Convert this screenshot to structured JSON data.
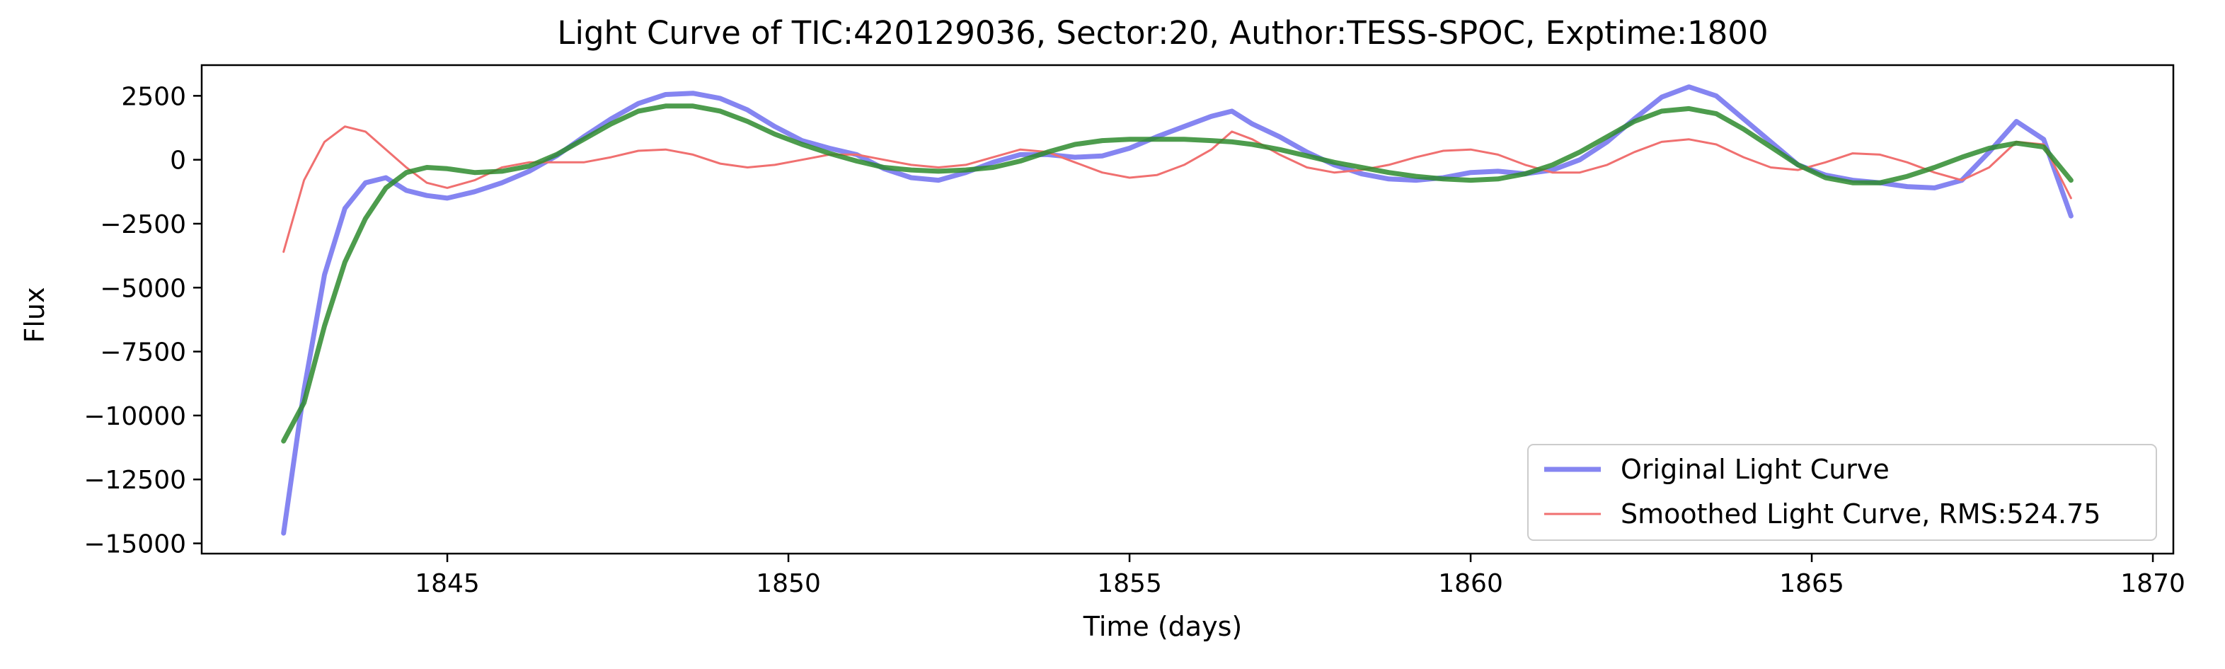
{
  "chart_data": {
    "type": "line",
    "title": "Light Curve of TIC:420129036, Sector:20, Author:TESS-SPOC, Exptime:1800",
    "xlabel": "Time (days)",
    "ylabel": "Flux",
    "xlim": [
      1841.4,
      1870.3
    ],
    "ylim": [
      -15400,
      3700
    ],
    "x_ticks": [
      1845,
      1850,
      1855,
      1860,
      1865,
      1870
    ],
    "y_ticks": [
      2500,
      0,
      -2500,
      -5000,
      -7500,
      -10000,
      -12500,
      -15000
    ],
    "x_tick_labels": [
      "1845",
      "1850",
      "1855",
      "1860",
      "1865",
      "1870"
    ],
    "y_tick_labels": [
      "2500",
      "0",
      "−2500",
      "−5000",
      "−7500",
      "−10000",
      "−12500",
      "−15000"
    ],
    "grid": false,
    "legend_position": "lower-right",
    "series": [
      {
        "name": "Original Light Curve",
        "color": "#7878f0",
        "x": [
          1842.6,
          1842.9,
          1843.2,
          1843.5,
          1843.8,
          1844.1,
          1844.4,
          1844.7,
          1845.0,
          1845.4,
          1845.8,
          1846.2,
          1846.6,
          1847.0,
          1847.4,
          1847.8,
          1848.2,
          1848.6,
          1849.0,
          1849.4,
          1849.8,
          1850.2,
          1850.6,
          1851.0,
          1851.4,
          1851.8,
          1852.2,
          1852.6,
          1853.0,
          1853.4,
          1853.8,
          1854.2,
          1854.6,
          1855.0,
          1855.4,
          1855.8,
          1856.2,
          1856.5,
          1856.8,
          1857.2,
          1857.6,
          1858.0,
          1858.4,
          1858.8,
          1859.2,
          1859.6,
          1860.0,
          1860.4,
          1860.8,
          1861.2,
          1861.6,
          1862.0,
          1862.4,
          1862.8,
          1863.2,
          1863.6,
          1864.0,
          1864.4,
          1864.8,
          1865.2,
          1865.6,
          1866.0,
          1866.4,
          1866.8,
          1867.2,
          1867.6,
          1868.0,
          1868.4,
          1868.8
        ],
        "y": [
          -14600,
          -9000,
          -4500,
          -1900,
          -900,
          -700,
          -1200,
          -1400,
          -1500,
          -1250,
          -900,
          -450,
          150,
          900,
          1600,
          2200,
          2550,
          2600,
          2400,
          1950,
          1300,
          750,
          450,
          200,
          -350,
          -700,
          -800,
          -500,
          -100,
          200,
          200,
          100,
          150,
          450,
          900,
          1300,
          1700,
          1900,
          1400,
          900,
          300,
          -200,
          -550,
          -750,
          -800,
          -700,
          -500,
          -450,
          -550,
          -400,
          0,
          700,
          1600,
          2450,
          2850,
          2500,
          1600,
          700,
          -200,
          -600,
          -800,
          -900,
          -1050,
          -1100,
          -800,
          300,
          1500,
          800,
          -2200
        ]
      },
      {
        "name": "Smoothed Light Curve, RMS:524.75",
        "color": "#f07070",
        "x": [
          1842.6,
          1842.9,
          1843.2,
          1843.5,
          1843.8,
          1844.1,
          1844.4,
          1844.7,
          1845.0,
          1845.4,
          1845.8,
          1846.2,
          1846.6,
          1847.0,
          1847.4,
          1847.8,
          1848.2,
          1848.6,
          1849.0,
          1849.4,
          1849.8,
          1850.2,
          1850.6,
          1851.0,
          1851.4,
          1851.8,
          1852.2,
          1852.6,
          1853.0,
          1853.4,
          1853.8,
          1854.2,
          1854.6,
          1855.0,
          1855.4,
          1855.8,
          1856.2,
          1856.5,
          1856.8,
          1857.2,
          1857.6,
          1858.0,
          1858.4,
          1858.8,
          1859.2,
          1859.6,
          1860.0,
          1860.4,
          1860.8,
          1861.2,
          1861.6,
          1862.0,
          1862.4,
          1862.8,
          1863.2,
          1863.6,
          1864.0,
          1864.4,
          1864.8,
          1865.2,
          1865.6,
          1866.0,
          1866.4,
          1866.8,
          1867.2,
          1867.6,
          1868.0,
          1868.4,
          1868.8
        ],
        "y": [
          -3600,
          -800,
          700,
          1300,
          1100,
          400,
          -300,
          -900,
          -1100,
          -800,
          -300,
          -100,
          -100,
          -100,
          100,
          350,
          400,
          200,
          -150,
          -300,
          -200,
          0,
          200,
          200,
          0,
          -200,
          -300,
          -200,
          100,
          400,
          300,
          -100,
          -500,
          -700,
          -600,
          -200,
          400,
          1100,
          800,
          200,
          -300,
          -500,
          -400,
          -200,
          100,
          350,
          400,
          200,
          -200,
          -500,
          -500,
          -200,
          300,
          700,
          800,
          600,
          100,
          -300,
          -400,
          -100,
          250,
          200,
          -100,
          -500,
          -800,
          -300,
          700,
          600,
          -1500
        ]
      },
      {
        "name": "",
        "color": "#2e8b2e",
        "x": [
          1842.6,
          1842.9,
          1843.2,
          1843.5,
          1843.8,
          1844.1,
          1844.4,
          1844.7,
          1845.0,
          1845.4,
          1845.8,
          1846.2,
          1846.6,
          1847.0,
          1847.4,
          1847.8,
          1848.2,
          1848.6,
          1849.0,
          1849.4,
          1849.8,
          1850.2,
          1850.6,
          1851.0,
          1851.4,
          1851.8,
          1852.2,
          1852.6,
          1853.0,
          1853.4,
          1853.8,
          1854.2,
          1854.6,
          1855.0,
          1855.4,
          1855.8,
          1856.2,
          1856.5,
          1856.8,
          1857.2,
          1857.6,
          1858.0,
          1858.4,
          1858.8,
          1859.2,
          1859.6,
          1860.0,
          1860.4,
          1860.8,
          1861.2,
          1861.6,
          1862.0,
          1862.4,
          1862.8,
          1863.2,
          1863.6,
          1864.0,
          1864.4,
          1864.8,
          1865.2,
          1865.6,
          1866.0,
          1866.4,
          1866.8,
          1867.2,
          1867.6,
          1868.0,
          1868.4,
          1868.8
        ],
        "y": [
          -11000,
          -9500,
          -6500,
          -4000,
          -2300,
          -1100,
          -500,
          -300,
          -350,
          -500,
          -450,
          -250,
          200,
          800,
          1400,
          1900,
          2100,
          2100,
          1900,
          1500,
          1000,
          600,
          250,
          -50,
          -300,
          -400,
          -450,
          -400,
          -300,
          -50,
          300,
          600,
          750,
          800,
          800,
          800,
          750,
          700,
          600,
          400,
          150,
          -100,
          -300,
          -500,
          -650,
          -750,
          -800,
          -750,
          -550,
          -200,
          300,
          900,
          1500,
          1900,
          2000,
          1800,
          1200,
          500,
          -200,
          -700,
          -900,
          -900,
          -650,
          -300,
          100,
          450,
          650,
          500,
          -800
        ]
      }
    ]
  }
}
